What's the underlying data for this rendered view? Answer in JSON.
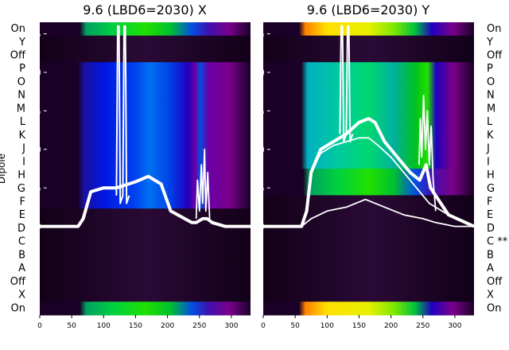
{
  "chart_data": [
    {
      "type": "heatmap",
      "title": "9.6 (LBD6=2030) X",
      "ylabel": "Dipole",
      "row_labels": [
        "On",
        "Y",
        "Off",
        "P",
        "O",
        "N",
        "M",
        "L",
        "K",
        "J",
        "I",
        "H",
        "G",
        "F",
        "E",
        "D",
        "C",
        "B",
        "A",
        "Off",
        "X",
        "On"
      ],
      "x_ticks": [
        0,
        50,
        100,
        150,
        200,
        250,
        300
      ],
      "xlim": [
        0,
        330
      ],
      "y_ticks": [
        0,
        5,
        10,
        15,
        20,
        25
      ],
      "ylim": [
        -11.5,
        26.5
      ],
      "line_series": [
        {
          "style": "thick",
          "x": [
            0,
            60,
            68,
            80,
            100,
            120,
            150,
            170,
            190,
            205,
            238,
            245,
            255,
            262,
            270,
            290,
            330
          ],
          "y": [
            0,
            0,
            1,
            4.5,
            5,
            5,
            5.8,
            6.5,
            5.5,
            2,
            0.5,
            0.5,
            1,
            1,
            0.5,
            0,
            0
          ]
        },
        {
          "style": "spike",
          "x": [
            120,
            122,
            124,
            126,
            130,
            132,
            134,
            136,
            140
          ],
          "y": [
            4,
            26,
            26,
            3,
            4,
            26,
            26,
            3,
            4
          ]
        },
        {
          "style": "noise",
          "x": [
            245,
            247,
            250,
            253,
            255,
            258,
            260,
            263,
            266
          ],
          "y": [
            1,
            6,
            2,
            8,
            3,
            10,
            2,
            7,
            1
          ]
        }
      ]
    },
    {
      "type": "heatmap",
      "title": "9.6 (LBD6=2030) Y",
      "ylabel": "",
      "row_labels": [
        "On",
        "Y",
        "Off",
        "P",
        "O",
        "N",
        "M",
        "L",
        "K",
        "J",
        "I",
        "H",
        "G",
        "F",
        "E",
        "D",
        "C **",
        "B",
        "A",
        "Off",
        "X",
        "On"
      ],
      "x_ticks": [
        0,
        50,
        100,
        150,
        200,
        250,
        300
      ],
      "xlim": [
        0,
        330
      ],
      "y_ticks": [
        0,
        5,
        10,
        15,
        20,
        25
      ],
      "ylim": [
        -11.5,
        26.5
      ],
      "line_series": [
        {
          "style": "thick",
          "x": [
            0,
            60,
            68,
            75,
            90,
            110,
            130,
            150,
            165,
            175,
            190,
            210,
            230,
            245,
            255,
            262,
            270,
            290,
            330
          ],
          "y": [
            0,
            0,
            2,
            7,
            10,
            11,
            12,
            13.5,
            14,
            13.5,
            11,
            9,
            7,
            6,
            8,
            5,
            4,
            1.5,
            0
          ]
        },
        {
          "style": "thin",
          "x": [
            0,
            60,
            68,
            75,
            90,
            110,
            130,
            150,
            165,
            180,
            200,
            220,
            240,
            260,
            280,
            300,
            330
          ],
          "y": [
            0,
            0,
            2,
            7,
            9.5,
            10.5,
            11,
            11.5,
            11.5,
            10.5,
            9,
            7,
            5,
            3,
            2,
            1,
            0
          ]
        },
        {
          "style": "thin",
          "x": [
            0,
            60,
            75,
            100,
            130,
            160,
            190,
            220,
            250,
            270,
            300,
            330
          ],
          "y": [
            0,
            0,
            1,
            2,
            2.5,
            3.5,
            2.5,
            1.5,
            1,
            0.5,
            0,
            0
          ]
        },
        {
          "style": "spike",
          "x": [
            120,
            122,
            124,
            126,
            130,
            132,
            134,
            136,
            140
          ],
          "y": [
            12,
            26,
            26,
            11,
            12,
            26,
            26,
            11,
            12
          ]
        },
        {
          "style": "noise",
          "x": [
            244,
            246,
            248,
            251,
            254,
            257,
            260,
            263,
            266,
            270
          ],
          "y": [
            8,
            14,
            9,
            17,
            10,
            15,
            8,
            13,
            6,
            2
          ]
        }
      ]
    }
  ]
}
